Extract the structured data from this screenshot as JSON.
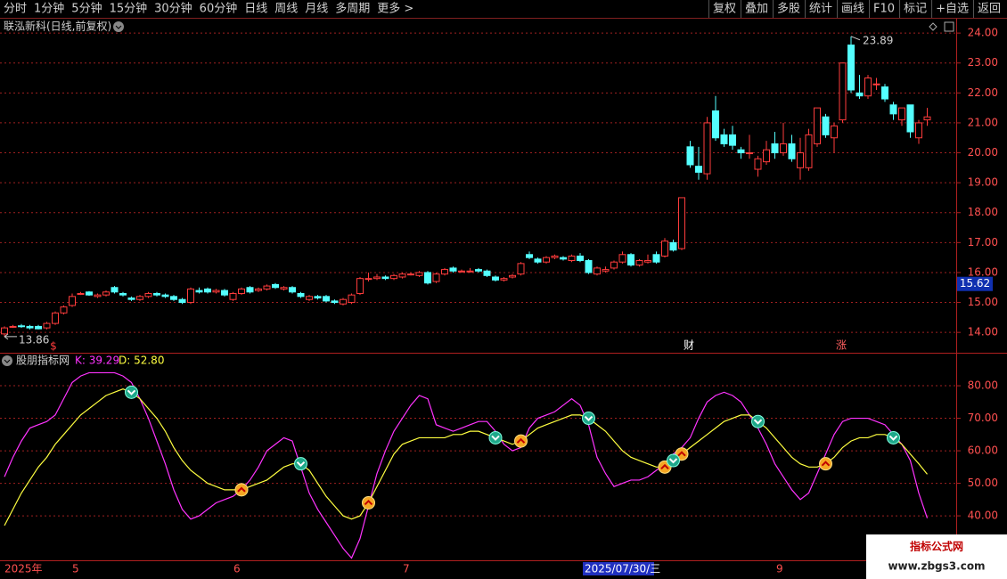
{
  "toolbar": {
    "left": [
      "分时",
      "1分钟",
      "5分钟",
      "15分钟",
      "30分钟",
      "60分钟",
      "日线",
      "周线",
      "月线",
      "多周期",
      "更多 >"
    ],
    "active": "日线",
    "right": [
      "复权",
      "叠加",
      "多股",
      "统计",
      "画线",
      "F10",
      "标记",
      "+自选",
      "返回"
    ]
  },
  "date_axis": [
    "2025年",
    "5",
    "6",
    "7",
    "2025/07/30/三",
    "9"
  ],
  "events": [
    "$",
    "财",
    "涨"
  ],
  "watermark": {
    "title": "指标公式网",
    "url": "www.zbgs3.com"
  },
  "chart_data": [
    {
      "type": "candlestick",
      "title": "联泓新科(日线,前复权)",
      "up_color": "#ff3c3c",
      "down_color": "#54ffff",
      "ylim": [
        13.35,
        24.45
      ],
      "yticks": [
        {
          "value": 14,
          "label": "14.00"
        },
        {
          "value": 15,
          "label": "15.00"
        },
        {
          "value": 16,
          "label": "16.00"
        },
        {
          "value": 17,
          "label": "17.00"
        },
        {
          "value": 18,
          "label": "18.00"
        },
        {
          "value": 19,
          "label": "19.00"
        },
        {
          "value": 20,
          "label": "20.00"
        },
        {
          "value": 21,
          "label": "21.00"
        },
        {
          "value": 22,
          "label": "22.00"
        },
        {
          "value": 23,
          "label": "23.00"
        },
        {
          "value": 24,
          "label": "24.00"
        }
      ],
      "grid": true,
      "max_label": 23.89,
      "min_label": 13.86,
      "price_tag": 15.62,
      "candles": [
        [
          13.95,
          14.2,
          13.86,
          14.15
        ],
        [
          14.2,
          14.25,
          14.15,
          14.2
        ],
        [
          14.22,
          14.28,
          14.15,
          14.2
        ],
        [
          14.2,
          14.25,
          14.1,
          14.15
        ],
        [
          14.2,
          14.25,
          14.1,
          14.12
        ],
        [
          14.15,
          14.35,
          14.1,
          14.3
        ],
        [
          14.3,
          14.7,
          14.25,
          14.65
        ],
        [
          14.65,
          14.9,
          14.6,
          14.85
        ],
        [
          14.9,
          15.3,
          14.85,
          15.2
        ],
        [
          15.3,
          15.35,
          15.25,
          15.3
        ],
        [
          15.35,
          15.38,
          15.22,
          15.25
        ],
        [
          15.2,
          15.3,
          15.15,
          15.25
        ],
        [
          15.25,
          15.4,
          15.2,
          15.35
        ],
        [
          15.5,
          15.55,
          15.3,
          15.35
        ],
        [
          15.3,
          15.35,
          15.2,
          15.25
        ],
        [
          15.15,
          15.2,
          15.05,
          15.1
        ],
        [
          15.1,
          15.25,
          15.05,
          15.2
        ],
        [
          15.2,
          15.35,
          15.15,
          15.3
        ],
        [
          15.3,
          15.35,
          15.2,
          15.25
        ],
        [
          15.25,
          15.3,
          15.15,
          15.2
        ],
        [
          15.2,
          15.25,
          15.05,
          15.1
        ],
        [
          15.1,
          15.15,
          14.95,
          15.0
        ],
        [
          15.0,
          15.5,
          14.95,
          15.45
        ],
        [
          15.4,
          15.5,
          15.3,
          15.35
        ],
        [
          15.45,
          15.5,
          15.3,
          15.35
        ],
        [
          15.35,
          15.45,
          15.3,
          15.4
        ],
        [
          15.4,
          15.45,
          15.2,
          15.25
        ],
        [
          15.1,
          15.35,
          15.05,
          15.3
        ],
        [
          15.3,
          15.5,
          15.25,
          15.45
        ],
        [
          15.5,
          15.55,
          15.3,
          15.35
        ],
        [
          15.4,
          15.5,
          15.35,
          15.45
        ],
        [
          15.45,
          15.6,
          15.4,
          15.55
        ],
        [
          15.6,
          15.65,
          15.45,
          15.5
        ],
        [
          15.45,
          15.55,
          15.4,
          15.5
        ],
        [
          15.5,
          15.55,
          15.3,
          15.35
        ],
        [
          15.3,
          15.35,
          15.15,
          15.2
        ],
        [
          15.1,
          15.25,
          15.05,
          15.2
        ],
        [
          15.2,
          15.25,
          15.1,
          15.15
        ],
        [
          15.2,
          15.25,
          15.0,
          15.05
        ],
        [
          15.05,
          15.1,
          14.95,
          15.0
        ],
        [
          14.95,
          15.15,
          14.9,
          15.1
        ],
        [
          15.0,
          15.3,
          14.95,
          15.25
        ],
        [
          15.3,
          15.85,
          15.25,
          15.8
        ],
        [
          15.8,
          16.0,
          15.7,
          15.8
        ],
        [
          15.8,
          15.95,
          15.75,
          15.85
        ],
        [
          15.85,
          15.9,
          15.75,
          15.8
        ],
        [
          15.8,
          15.95,
          15.75,
          15.9
        ],
        [
          15.85,
          16.0,
          15.8,
          15.95
        ],
        [
          15.95,
          16.0,
          15.9,
          15.95
        ],
        [
          15.9,
          16.05,
          15.85,
          16.0
        ],
        [
          16.0,
          16.05,
          15.6,
          15.65
        ],
        [
          15.7,
          16.0,
          15.65,
          15.95
        ],
        [
          15.95,
          16.15,
          15.9,
          16.1
        ],
        [
          16.15,
          16.2,
          16.0,
          16.05
        ],
        [
          16.05,
          16.1,
          16.0,
          16.05
        ],
        [
          16.05,
          16.15,
          16.0,
          16.05
        ],
        [
          16.1,
          16.15,
          16.0,
          16.05
        ],
        [
          16.05,
          16.1,
          15.85,
          15.9
        ],
        [
          15.85,
          15.9,
          15.7,
          15.75
        ],
        [
          15.75,
          15.85,
          15.7,
          15.8
        ],
        [
          15.85,
          15.95,
          15.8,
          15.9
        ],
        [
          15.95,
          16.35,
          15.9,
          16.3
        ],
        [
          16.6,
          16.7,
          16.45,
          16.5
        ],
        [
          16.45,
          16.5,
          16.3,
          16.35
        ],
        [
          16.35,
          16.55,
          16.3,
          16.5
        ],
        [
          16.5,
          16.6,
          16.45,
          16.55
        ],
        [
          16.5,
          16.55,
          16.4,
          16.45
        ],
        [
          16.4,
          16.6,
          16.35,
          16.55
        ],
        [
          16.55,
          16.65,
          16.35,
          16.4
        ],
        [
          16.4,
          16.45,
          15.95,
          16.0
        ],
        [
          15.95,
          16.2,
          15.9,
          16.15
        ],
        [
          16.05,
          16.2,
          16.0,
          16.1
        ],
        [
          16.15,
          16.4,
          16.1,
          16.35
        ],
        [
          16.35,
          16.7,
          16.3,
          16.6
        ],
        [
          16.6,
          16.65,
          16.2,
          16.25
        ],
        [
          16.25,
          16.45,
          16.2,
          16.4
        ],
        [
          16.35,
          16.6,
          16.3,
          16.4
        ],
        [
          16.6,
          16.7,
          16.3,
          16.35
        ],
        [
          16.55,
          17.15,
          16.5,
          17.05
        ],
        [
          17.0,
          17.1,
          16.7,
          16.75
        ],
        [
          16.8,
          18.5,
          16.75,
          18.5
        ],
        [
          20.2,
          20.4,
          19.5,
          19.6
        ],
        [
          19.55,
          20.2,
          19.1,
          19.35
        ],
        [
          19.3,
          21.2,
          19.1,
          21.0
        ],
        [
          21.4,
          21.9,
          20.4,
          20.5
        ],
        [
          20.6,
          20.8,
          20.2,
          20.3
        ],
        [
          20.6,
          20.9,
          20.1,
          20.25
        ],
        [
          20.1,
          20.2,
          19.8,
          20.0
        ],
        [
          20.0,
          20.6,
          19.8,
          20.0
        ],
        [
          19.45,
          19.9,
          19.2,
          19.8
        ],
        [
          19.7,
          20.4,
          19.6,
          20.1
        ],
        [
          20.3,
          20.7,
          19.8,
          20.0
        ],
        [
          20.0,
          21.0,
          19.9,
          20.3
        ],
        [
          20.3,
          20.6,
          19.7,
          19.8
        ],
        [
          19.5,
          20.5,
          19.1,
          20.0
        ],
        [
          19.5,
          20.8,
          19.4,
          20.6
        ],
        [
          20.3,
          21.5,
          20.2,
          21.5
        ],
        [
          21.2,
          21.3,
          20.5,
          20.6
        ],
        [
          20.5,
          21.0,
          20.0,
          20.9
        ],
        [
          21.1,
          23.0,
          21.0,
          23.0
        ],
        [
          23.6,
          23.89,
          22.0,
          22.1
        ],
        [
          22.0,
          22.6,
          21.8,
          21.9
        ],
        [
          21.9,
          22.6,
          21.8,
          22.5
        ],
        [
          22.3,
          22.5,
          22.1,
          22.3
        ],
        [
          22.2,
          22.3,
          21.7,
          21.8
        ],
        [
          21.6,
          21.7,
          21.1,
          21.3
        ],
        [
          21.1,
          21.5,
          20.9,
          21.5
        ],
        [
          21.6,
          21.6,
          20.5,
          20.7
        ],
        [
          20.5,
          21.1,
          20.3,
          21.0
        ],
        [
          21.1,
          21.5,
          20.9,
          21.2
        ]
      ]
    },
    {
      "type": "line",
      "title": "股朋指标网",
      "ylim": [
        26.6,
        89.6
      ],
      "yticks": [
        {
          "value": 40,
          "label": "40.00"
        },
        {
          "value": 50,
          "label": "50.00"
        },
        {
          "value": 60,
          "label": "60.00"
        },
        {
          "value": 70,
          "label": "70.00"
        },
        {
          "value": 80,
          "label": "80.00"
        }
      ],
      "grid": true,
      "series": [
        {
          "name": "K",
          "color": "#ff33ff",
          "value_label": "K: 39.29",
          "values": [
            52,
            58,
            63,
            67,
            68,
            69,
            71,
            76,
            81,
            83,
            84,
            84,
            84,
            84,
            83,
            81,
            76,
            70,
            63,
            56,
            48,
            42,
            39,
            40,
            42,
            44,
            45,
            46,
            48,
            51,
            55,
            60,
            62,
            64,
            63,
            55,
            47,
            42,
            38,
            34,
            30,
            27,
            33,
            43,
            53,
            60,
            66,
            70,
            74,
            77,
            76,
            68,
            67,
            66,
            67,
            68,
            69,
            69,
            66,
            62,
            60,
            61,
            67,
            70,
            71,
            72,
            74,
            76,
            74,
            68,
            58,
            53,
            49,
            50,
            51,
            51,
            52,
            54,
            56,
            59,
            61,
            64,
            70,
            75,
            77,
            78,
            77,
            75,
            71,
            67,
            62,
            56,
            52,
            48,
            45,
            47,
            53,
            59,
            65,
            69,
            70,
            70,
            70,
            69,
            68,
            65,
            62,
            57,
            47,
            39.29
          ]
        },
        {
          "name": "D",
          "color": "#ffff40",
          "value_label": "D: 52.80",
          "values": [
            37,
            42,
            47,
            51,
            55,
            58,
            62,
            65,
            68,
            71,
            73,
            75,
            77,
            78,
            79,
            78,
            76,
            73,
            70,
            66,
            61,
            57,
            54,
            52,
            50,
            49,
            48,
            48,
            48,
            49,
            50,
            51,
            53,
            55,
            56,
            56,
            54,
            50,
            46,
            43,
            40,
            39,
            40,
            44,
            49,
            54,
            59,
            62,
            63,
            64,
            64,
            64,
            64,
            65,
            65,
            66,
            66,
            65,
            64,
            63,
            62,
            63,
            65,
            67,
            68,
            69,
            70,
            71,
            71,
            70,
            68,
            66,
            63,
            60,
            58,
            57,
            56,
            55,
            55,
            57,
            59,
            61,
            63,
            65,
            67,
            69,
            70,
            71,
            71,
            69,
            67,
            64,
            61,
            58,
            56,
            55,
            55,
            56,
            58,
            61,
            63,
            64,
            64,
            65,
            65,
            64,
            62,
            59,
            56,
            52.8
          ]
        }
      ],
      "buy_points": [
        28,
        43,
        61,
        78,
        80,
        97
      ],
      "sell_points": [
        15,
        35,
        58,
        69,
        79,
        89,
        105
      ]
    }
  ]
}
